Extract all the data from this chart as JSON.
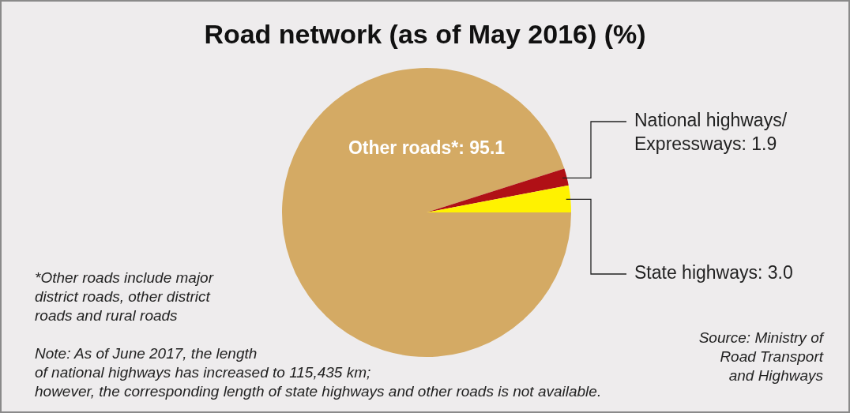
{
  "chart_data": {
    "type": "pie",
    "title": "Road network (as of May 2016) (%)",
    "categories": [
      "Other roads*",
      "National highways/ Expressways",
      "State highways"
    ],
    "value_labels": [
      "95.1",
      "1.9",
      "3.0"
    ],
    "values": [
      95.1,
      1.9,
      3.0
    ],
    "colors": [
      "#d4aa64",
      "#b01016",
      "#fff200"
    ],
    "legend": false,
    "annotations": [
      "*Other roads include major\ndistrict roads, other district\nroads and rural roads",
      "Note: As of June 2017, the length\nof national highways has increased to 115,435 km;\nhowever, the corresponding length of state highways and other roads is not available.",
      "Source: Ministry of\nRoad Transport\nand Highways"
    ]
  }
}
